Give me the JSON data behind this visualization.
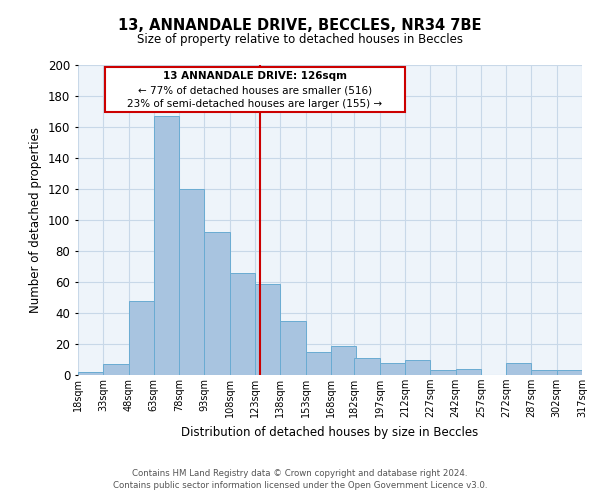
{
  "title": "13, ANNANDALE DRIVE, BECCLES, NR34 7BE",
  "subtitle": "Size of property relative to detached houses in Beccles",
  "xlabel": "Distribution of detached houses by size in Beccles",
  "ylabel": "Number of detached properties",
  "bar_heights": [
    2,
    7,
    48,
    167,
    120,
    92,
    66,
    59,
    35,
    15,
    19,
    11,
    8,
    10,
    3,
    4,
    0,
    8,
    3,
    3
  ],
  "bin_edges": [
    18,
    33,
    48,
    63,
    78,
    93,
    108,
    123,
    138,
    153,
    168,
    182,
    197,
    212,
    227,
    242,
    257,
    272,
    287,
    302,
    317
  ],
  "tick_labels": [
    "18sqm",
    "33sqm",
    "48sqm",
    "63sqm",
    "78sqm",
    "93sqm",
    "108sqm",
    "123sqm",
    "138sqm",
    "153sqm",
    "168sqm",
    "182sqm",
    "197sqm",
    "212sqm",
    "227sqm",
    "242sqm",
    "257sqm",
    "272sqm",
    "287sqm",
    "302sqm",
    "317sqm"
  ],
  "bar_color": "#a8c4e0",
  "bar_edge_color": "#6aabd2",
  "vline_x": 126,
  "vline_color": "#cc0000",
  "ylim": [
    0,
    200
  ],
  "yticks": [
    0,
    20,
    40,
    60,
    80,
    100,
    120,
    140,
    160,
    180,
    200
  ],
  "annotation_title": "13 ANNANDALE DRIVE: 126sqm",
  "annotation_line1": "← 77% of detached houses are smaller (516)",
  "annotation_line2": "23% of semi-detached houses are larger (155) →",
  "annotation_box_color": "#cc0000",
  "grid_color": "#c8d8e8",
  "background_color": "#eef4fa",
  "footer1": "Contains HM Land Registry data © Crown copyright and database right 2024.",
  "footer2": "Contains public sector information licensed under the Open Government Licence v3.0."
}
